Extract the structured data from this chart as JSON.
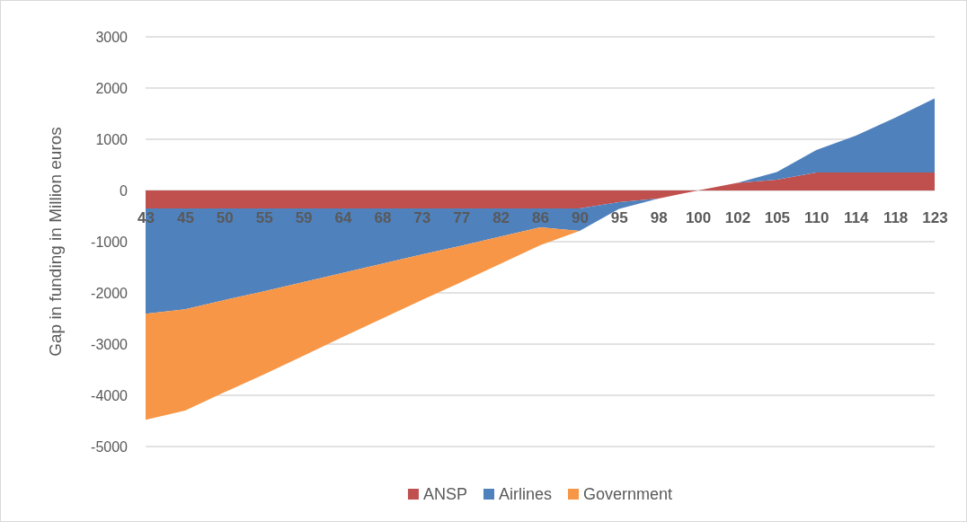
{
  "chart_data": {
    "type": "area",
    "stacked": true,
    "ylabel": "Gap in funding in Million euros",
    "categories": [
      "43",
      "45",
      "50",
      "55",
      "59",
      "64",
      "68",
      "73",
      "77",
      "82",
      "86",
      "90",
      "95",
      "98",
      "100",
      "102",
      "105",
      "110",
      "114",
      "118",
      "123"
    ],
    "series": [
      {
        "name": "ANSP",
        "color": "#c0504d",
        "values": [
          -350,
          -350,
          -350,
          -350,
          -350,
          -350,
          -350,
          -350,
          -350,
          -350,
          -350,
          -350,
          -230,
          -160,
          0,
          150,
          210,
          350,
          350,
          350,
          350
        ]
      },
      {
        "name": "Airlines",
        "color": "#4f81bd",
        "values": [
          -2060,
          -1970,
          -1790,
          -1620,
          -1440,
          -1260,
          -1080,
          -900,
          -730,
          -550,
          -370,
          -440,
          -130,
          0,
          0,
          0,
          150,
          440,
          720,
          1070,
          1450
        ]
      },
      {
        "name": "Government",
        "color": "#f79646",
        "values": [
          -2070,
          -1980,
          -1800,
          -1620,
          -1440,
          -1250,
          -1070,
          -890,
          -710,
          -530,
          -350,
          0,
          0,
          0,
          0,
          0,
          0,
          0,
          0,
          0,
          0
        ]
      }
    ],
    "ylim": [
      -5000,
      3000
    ],
    "yticks": [
      -5000,
      -4000,
      -3000,
      -2000,
      -1000,
      0,
      1000,
      2000,
      3000
    ],
    "grid": "y",
    "legend": "bottom"
  }
}
